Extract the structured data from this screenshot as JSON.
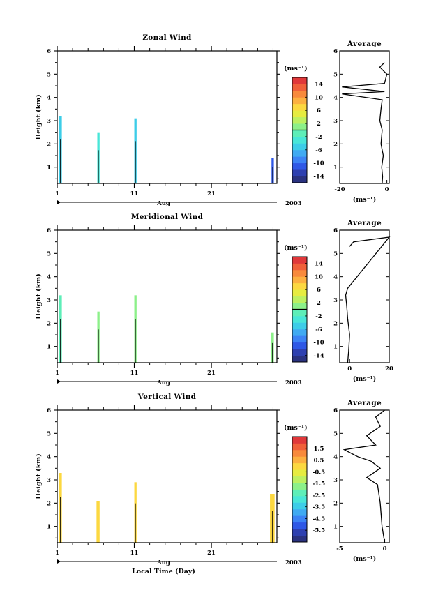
{
  "figure": {
    "xlabel": "Local Time (Day)",
    "month_label": "Aug",
    "year_label": "2003",
    "height_axis_label": "Height (km)",
    "unit_label": "(ms⁻¹)",
    "average_title": "Average"
  },
  "chart_data": [
    {
      "type": "heatmap",
      "title": "Zonal Wind",
      "ylabel": "Height (km)",
      "xlabel": "",
      "x_ticks": [
        "1",
        "11",
        "21"
      ],
      "x_range_day": [
        1,
        29.5
      ],
      "y_ticks": [
        "1",
        "2",
        "3",
        "4",
        "5",
        "6"
      ],
      "ylim_km": [
        0.3,
        6
      ],
      "colorbar": {
        "unit": "(ms⁻¹)",
        "range": [
          -16,
          16
        ],
        "tick_labels": [
          "14",
          "10",
          "6",
          "2",
          "-2",
          "-6",
          "-10",
          "-14"
        ],
        "zero_line": true,
        "colors": [
          "#2a3280",
          "#2e40b0",
          "#2f58e6",
          "#3c83f5",
          "#40aaf2",
          "#3dcde8",
          "#48e6d8",
          "#5eeeb8",
          "#8cf089",
          "#bdf060",
          "#e6ec40",
          "#fcd840",
          "#fcb040",
          "#f88a3c",
          "#f0603a",
          "#e0383a"
        ]
      },
      "swaths": [
        {
          "day_start": 1.2,
          "day_end": 1.6,
          "height_min_km": 0.3,
          "height_max_km": 3.2,
          "color": "#3dcde8"
        },
        {
          "day_start": 6.2,
          "day_end": 6.5,
          "height_min_km": 0.3,
          "height_max_km": 2.5,
          "color": "#48e6d8"
        },
        {
          "day_start": 11.0,
          "day_end": 11.3,
          "height_min_km": 0.3,
          "height_max_km": 3.1,
          "color": "#3dcde8"
        },
        {
          "day_start": 28.8,
          "day_end": 29.1,
          "height_min_km": 0.3,
          "height_max_km": 1.4,
          "color": "#2f58e6"
        }
      ],
      "average_profile": {
        "xlabel": "(ms⁻¹)",
        "x_ticks": [
          "-20",
          "0"
        ],
        "xlim": [
          -20,
          1
        ],
        "ylim_km": [
          0.3,
          6
        ],
        "y_ticks": [
          "1",
          "2",
          "3",
          "4",
          "5",
          "6"
        ],
        "points": [
          [
            -2,
            0.3
          ],
          [
            -1.8,
            0.6
          ],
          [
            -2.2,
            1.0
          ],
          [
            -1.5,
            1.5
          ],
          [
            -2.5,
            2.0
          ],
          [
            -2,
            2.6
          ],
          [
            -3,
            3.0
          ],
          [
            -2.5,
            3.5
          ],
          [
            -2,
            3.9
          ],
          [
            -19,
            4.15
          ],
          [
            -1,
            4.25
          ],
          [
            -19,
            4.45
          ],
          [
            -1,
            4.6
          ],
          [
            0,
            5.0
          ],
          [
            -3,
            5.3
          ],
          [
            -1,
            5.5
          ]
        ]
      }
    },
    {
      "type": "heatmap",
      "title": "Meridional Wind",
      "ylabel": "Height (km)",
      "xlabel": "",
      "x_ticks": [
        "1",
        "11",
        "21"
      ],
      "x_range_day": [
        1,
        29.5
      ],
      "y_ticks": [
        "1",
        "2",
        "3",
        "4",
        "5",
        "6"
      ],
      "ylim_km": [
        0.3,
        6
      ],
      "colorbar": {
        "unit": "(ms⁻¹)",
        "range": [
          -16,
          16
        ],
        "tick_labels": [
          "14",
          "10",
          "6",
          "2",
          "-2",
          "-6",
          "-10",
          "-14"
        ],
        "zero_line": true,
        "colors": [
          "#2a3280",
          "#2e40b0",
          "#2f58e6",
          "#3c83f5",
          "#40aaf2",
          "#3dcde8",
          "#48e6d8",
          "#5eeeb8",
          "#8cf089",
          "#bdf060",
          "#e6ec40",
          "#fcd840",
          "#fcb040",
          "#f88a3c",
          "#f0603a",
          "#e0383a"
        ]
      },
      "swaths": [
        {
          "day_start": 1.2,
          "day_end": 1.6,
          "height_min_km": 0.3,
          "height_max_km": 3.2,
          "color": "#5eeeb8"
        },
        {
          "day_start": 6.2,
          "day_end": 6.5,
          "height_min_km": 0.3,
          "height_max_km": 2.5,
          "color": "#8cf089"
        },
        {
          "day_start": 11.0,
          "day_end": 11.3,
          "height_min_km": 0.3,
          "height_max_km": 3.2,
          "color": "#8cf089"
        },
        {
          "day_start": 28.7,
          "day_end": 29.1,
          "height_min_km": 0.3,
          "height_max_km": 1.6,
          "color": "#8cf089"
        }
      ],
      "average_profile": {
        "xlabel": "(ms⁻¹)",
        "x_ticks": [
          "0",
          "20"
        ],
        "xlim": [
          -5,
          20
        ],
        "ylim_km": [
          0.3,
          6
        ],
        "y_ticks": [
          "1",
          "2",
          "3",
          "4",
          "5",
          "6"
        ],
        "points": [
          [
            -1,
            0.3
          ],
          [
            -0.5,
            0.8
          ],
          [
            0,
            1.5
          ],
          [
            -1,
            2.2
          ],
          [
            -1.5,
            2.8
          ],
          [
            -2,
            3.2
          ],
          [
            -1,
            3.5
          ],
          [
            20,
            5.7
          ],
          [
            2,
            5.5
          ],
          [
            0,
            5.3
          ]
        ]
      }
    },
    {
      "type": "heatmap",
      "title": "Vertical Wind",
      "ylabel": "Height (km)",
      "xlabel": "Local Time (Day)",
      "x_ticks": [
        "1",
        "11",
        "21"
      ],
      "x_range_day": [
        1,
        29.5
      ],
      "y_ticks": [
        "1",
        "2",
        "3",
        "4",
        "5",
        "6"
      ],
      "ylim_km": [
        0.3,
        6
      ],
      "colorbar": {
        "unit": "(ms⁻¹)",
        "range": [
          -6.5,
          2.5
        ],
        "tick_labels": [
          "1.5",
          "0.5",
          "-0.5",
          "-1.5",
          "-2.5",
          "-3.5",
          "-4.5",
          "-5.5"
        ],
        "zero_line": false,
        "colors": [
          "#2a3280",
          "#2e40b0",
          "#2f58e6",
          "#3c83f5",
          "#40aaf2",
          "#3dcde8",
          "#48e6d8",
          "#5eeeb8",
          "#8cf089",
          "#bdf060",
          "#e6ec40",
          "#fcd840",
          "#fcb040",
          "#f88a3c",
          "#f0603a",
          "#e0383a"
        ]
      },
      "swaths": [
        {
          "day_start": 1.2,
          "day_end": 1.6,
          "height_min_km": 0.3,
          "height_max_km": 3.3,
          "color": "#fcd840"
        },
        {
          "day_start": 6.1,
          "day_end": 6.5,
          "height_min_km": 0.3,
          "height_max_km": 2.1,
          "color": "#fcd840"
        },
        {
          "day_start": 11.0,
          "day_end": 11.3,
          "height_min_km": 0.3,
          "height_max_km": 2.9,
          "color": "#fcd840"
        },
        {
          "day_start": 28.6,
          "day_end": 29.2,
          "height_min_km": 0.3,
          "height_max_km": 2.4,
          "color": "#fcd840"
        }
      ],
      "average_profile": {
        "xlabel": "(ms⁻¹)",
        "x_ticks": [
          "-5",
          "0"
        ],
        "xlim": [
          -5,
          0.5
        ],
        "ylim_km": [
          0.3,
          6
        ],
        "y_ticks": [
          "1",
          "2",
          "3",
          "4",
          "5",
          "6"
        ],
        "points": [
          [
            0,
            0.3
          ],
          [
            -0.3,
            1.0
          ],
          [
            -0.5,
            2.0
          ],
          [
            -0.8,
            2.8
          ],
          [
            -2,
            3.1
          ],
          [
            -0.5,
            3.5
          ],
          [
            -1.5,
            3.8
          ],
          [
            -3,
            4.0
          ],
          [
            -4.5,
            4.3
          ],
          [
            -1,
            4.5
          ],
          [
            -2,
            4.9
          ],
          [
            -0.5,
            5.3
          ],
          [
            -1,
            5.7
          ],
          [
            0,
            6.0
          ]
        ]
      }
    }
  ]
}
